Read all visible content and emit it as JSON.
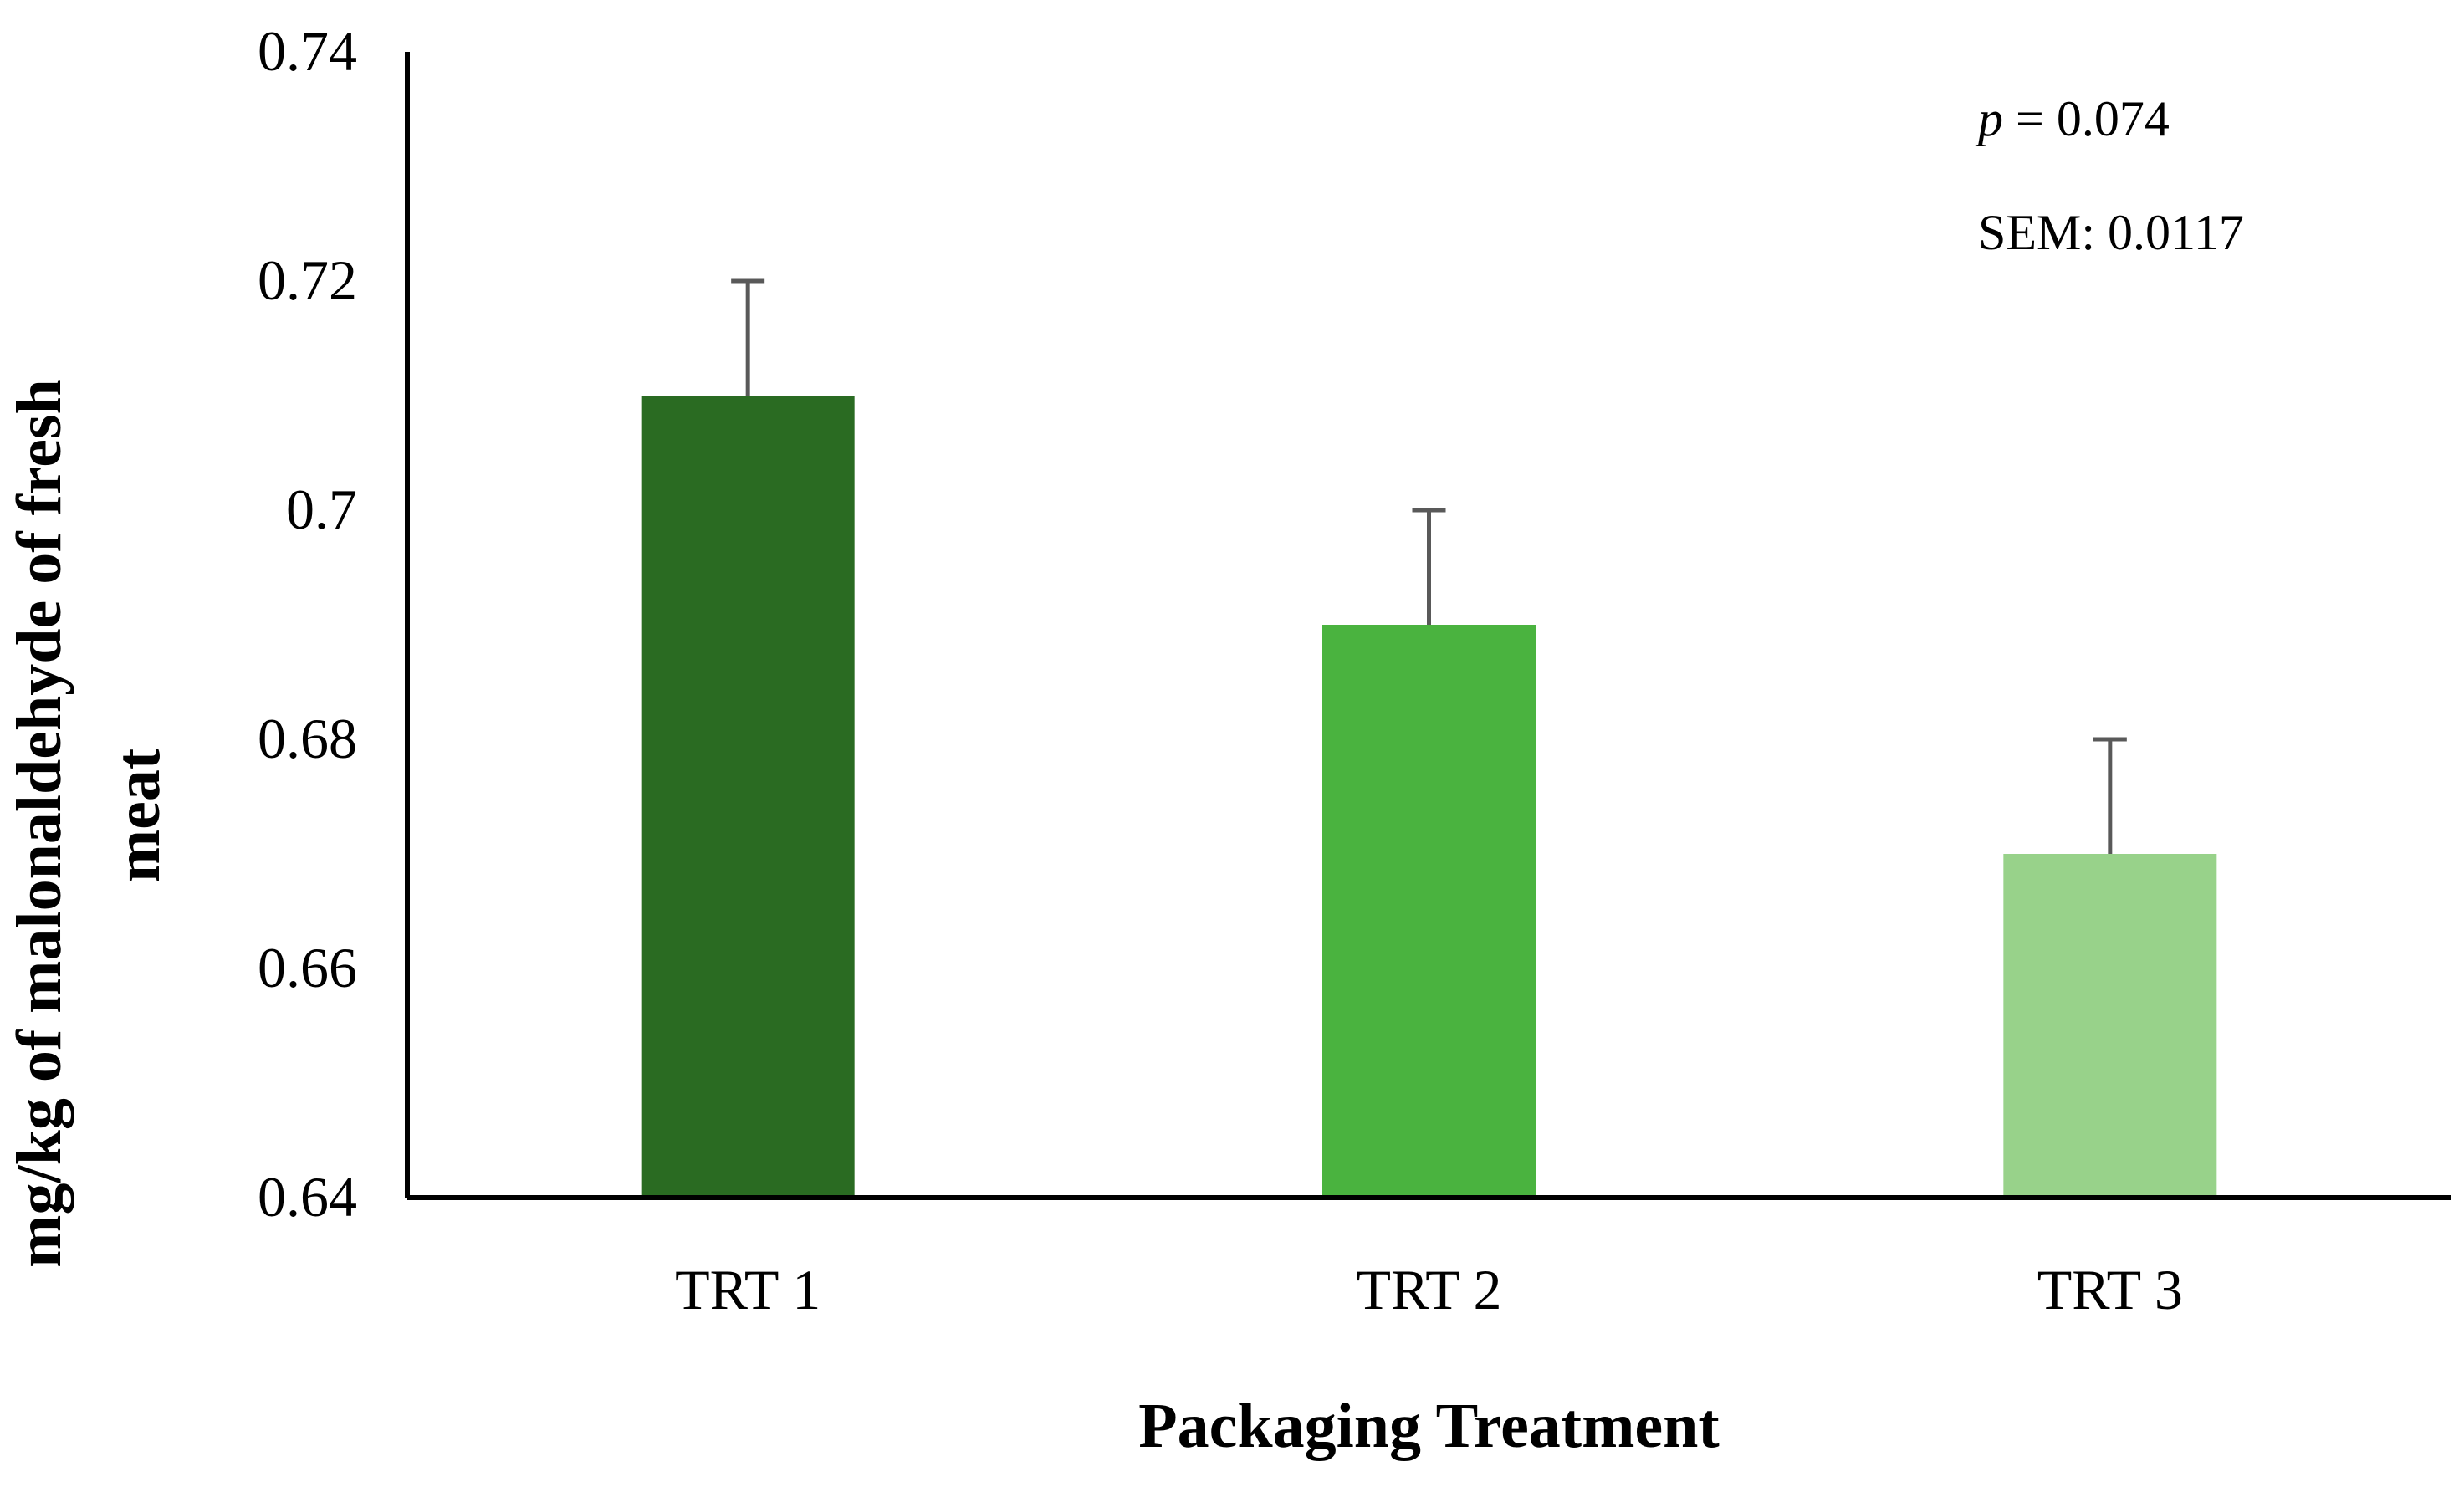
{
  "chart_data": {
    "type": "bar",
    "title": "",
    "xlabel": "Packaging Treatment",
    "ylabel_lines": [
      "mg/kg of malonaldehyde of fresh",
      "meat"
    ],
    "ylim": [
      0.64,
      0.74
    ],
    "yticks": [
      "0.64",
      "0.66",
      "0.68",
      "0.7",
      "0.72",
      "0.74"
    ],
    "categories": [
      "TRT 1",
      "TRT 2",
      "TRT 3"
    ],
    "values": [
      0.71,
      0.69,
      0.67
    ],
    "error_bars": [
      0.01,
      0.01,
      0.01
    ],
    "colors": [
      "#2a6b22",
      "#4ab33f",
      "#98d28a"
    ],
    "error_color": "#595959",
    "grid": false,
    "legend": "none",
    "annotations": {
      "p_symbol": "p",
      "p_rest": " = 0.074",
      "sem": "SEM: 0.0117"
    }
  }
}
